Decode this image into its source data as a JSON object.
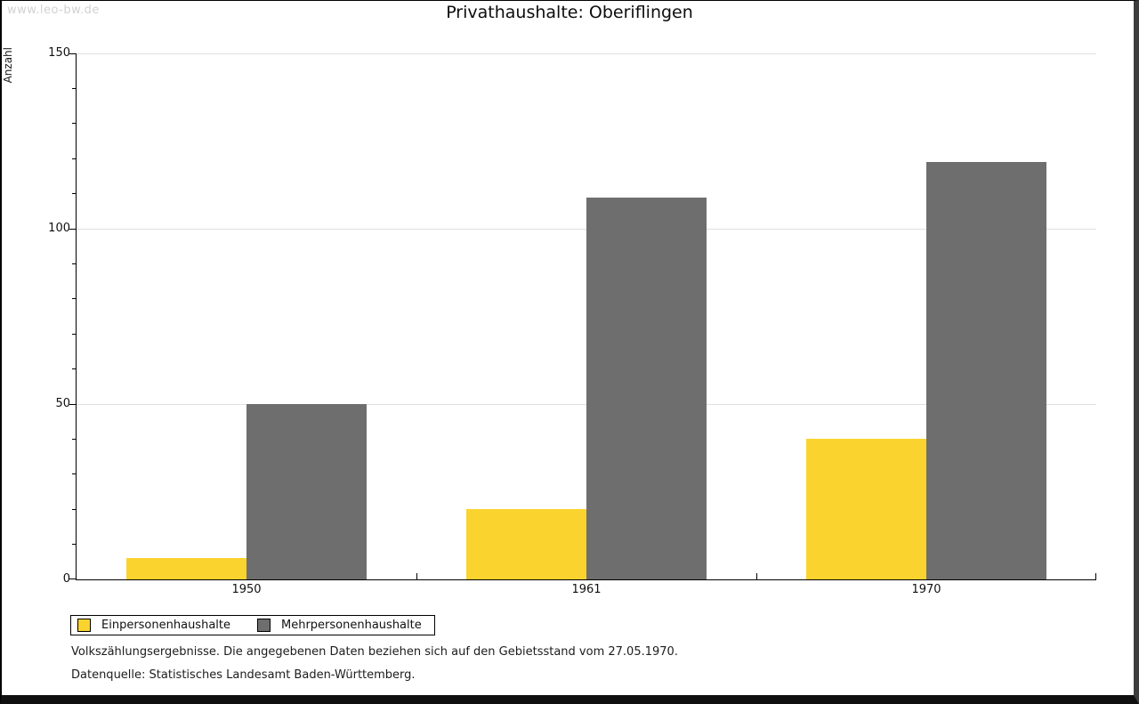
{
  "watermark": "www.leo-bw.de",
  "title": "Privathaushalte: Oberiflingen",
  "chart_data": {
    "type": "bar",
    "title": "Privathaushalte: Oberiflingen",
    "categories": [
      "1950",
      "1961",
      "1970"
    ],
    "series": [
      {
        "name": "Einpersonenhaushalte",
        "color": "#FBD32E",
        "values": [
          6,
          20,
          40
        ]
      },
      {
        "name": "Mehrpersonenhaushalte",
        "color": "#6E6E6E",
        "values": [
          50,
          109,
          119
        ]
      }
    ],
    "xlabel": "",
    "ylabel": "Anzahl",
    "ylim": [
      0,
      150
    ],
    "y_major_ticks": [
      0,
      50,
      100,
      150
    ],
    "y_minor_step": 10,
    "grid": true,
    "gridline_color": "#e0e0e0",
    "legend_position": "bottom-left"
  },
  "footnotes": [
    "Volkszählungsergebnisse. Die angegebenen Daten beziehen sich auf den Gebietsstand vom 27.05.1970.",
    "Datenquelle: Statistisches Landesamt Baden-Württemberg."
  ]
}
